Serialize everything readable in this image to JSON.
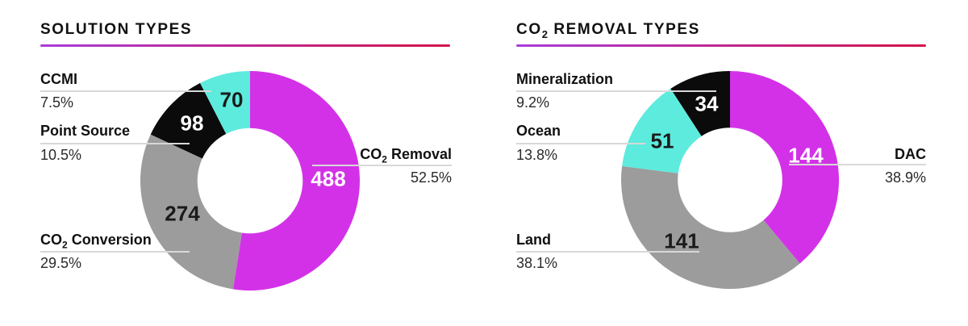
{
  "page": {
    "background": "#ffffff",
    "text_color": "#1a1a1a",
    "leader_line_color": "#d8d8d8"
  },
  "accent_gradient": [
    "#aa3cd8",
    "#d3154a"
  ],
  "chart_data": [
    {
      "type": "donut",
      "title": {
        "pre": "SOLUTION TYPES",
        "sub": "",
        "post": ""
      },
      "start_angle_deg": 0,
      "direction": "clockwise",
      "inner_radius_ratio": 0.48,
      "total": 930,
      "slices": [
        {
          "key": "co2-removal",
          "label": {
            "pre": "CO",
            "sub": "2",
            "post": " Removal"
          },
          "value": 488,
          "pct": "52.5%",
          "color": "#d331e8",
          "value_color": "#ffffff"
        },
        {
          "key": "co2-conversion",
          "label": {
            "pre": "CO",
            "sub": "2",
            "post": " Conversion"
          },
          "value": 274,
          "pct": "29.5%",
          "color": "#9c9c9c",
          "value_color": "#1a1a1a"
        },
        {
          "key": "point-source",
          "label": {
            "pre": "Point Source",
            "sub": "",
            "post": ""
          },
          "value": 98,
          "pct": "10.5%",
          "color": "#0b0b0b",
          "value_color": "#ffffff"
        },
        {
          "key": "ccmi",
          "label": {
            "pre": "CCMI",
            "sub": "",
            "post": ""
          },
          "value": 70,
          "pct": "7.5%",
          "color": "#5debdd",
          "value_color": "#1a1a1a"
        }
      ]
    },
    {
      "type": "donut",
      "title": {
        "pre": "CO",
        "sub": "2",
        "post": " REMOVAL TYPES"
      },
      "start_angle_deg": 0,
      "direction": "clockwise",
      "inner_radius_ratio": 0.48,
      "total": 370,
      "slices": [
        {
          "key": "dac",
          "label": {
            "pre": "DAC",
            "sub": "",
            "post": ""
          },
          "value": 144,
          "pct": "38.9%",
          "color": "#d331e8",
          "value_color": "#ffffff"
        },
        {
          "key": "land",
          "label": {
            "pre": "Land",
            "sub": "",
            "post": ""
          },
          "value": 141,
          "pct": "38.1%",
          "color": "#9c9c9c",
          "value_color": "#1a1a1a"
        },
        {
          "key": "ocean",
          "label": {
            "pre": "Ocean",
            "sub": "",
            "post": ""
          },
          "value": 51,
          "pct": "13.8%",
          "color": "#5debdd",
          "value_color": "#1a1a1a"
        },
        {
          "key": "mineralization",
          "label": {
            "pre": "Mineralization",
            "sub": "",
            "post": ""
          },
          "value": 34,
          "pct": "9.2%",
          "color": "#0b0b0b",
          "value_color": "#ffffff"
        }
      ]
    }
  ]
}
